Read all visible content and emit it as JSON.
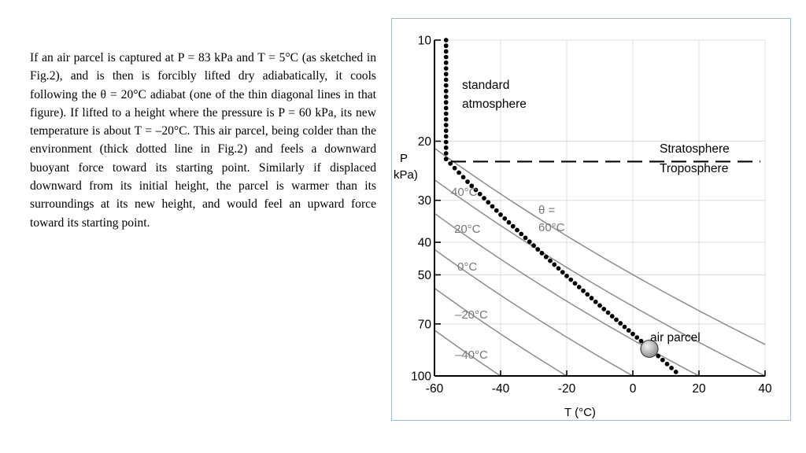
{
  "paragraph": "If an air parcel is captured at P = 83 kPa and T = 5°C (as sketched in Fig.2), and is then is forcibly lifted dry adiabatically, it cools following the θ = 20°C adiabat (one of the thin diagonal lines in that figure). If lifted to a height where the pressure is P = 60 kPa, its new temperature is about T = –20°C. This air parcel, being colder than the environment (thick dotted line in Fig.2) and feels a downward buoyant force toward its starting point. Similarly if displaced downward from its initial height, the parcel is warmer than its surroundings at its new height, and would feel an upward force toward its starting point.",
  "chart_data": {
    "type": "line",
    "xlabel": "T (°C)",
    "ylabel_line1": "P",
    "ylabel_line2": "kPa)",
    "x_ticks": [
      "-60",
      "-40",
      "-20",
      "0",
      "20",
      "40"
    ],
    "x_tick_values": [
      -60,
      -40,
      -20,
      0,
      20,
      40
    ],
    "y_ticks": [
      "10",
      "20",
      "30",
      "40",
      "50",
      "70",
      "100"
    ],
    "y_tick_values": [
      10,
      20,
      30,
      40,
      50,
      70,
      100
    ],
    "xlim": [
      -60,
      40
    ],
    "ylim": [
      10,
      100
    ],
    "y_scale": "log (reversed, pressure decreasing upward)",
    "grid": true,
    "standard_atmosphere": {
      "label_line1": "standard",
      "label_line2": "atmosphere",
      "style": "thick dotted",
      "points": [
        [
          -56.5,
          10
        ],
        [
          -56.5,
          22.6
        ],
        [
          -50,
          26.4
        ],
        [
          -40,
          33.1
        ],
        [
          -30,
          40.9
        ],
        [
          -20,
          50.4
        ],
        [
          -10,
          61.7
        ],
        [
          0,
          75.0
        ],
        [
          5,
          82.6
        ],
        [
          15,
          101.3
        ]
      ]
    },
    "tropopause": {
      "pressure": 23,
      "label_above": "Stratosphere",
      "label_below": "Troposphere",
      "style": "dashed"
    },
    "dry_adiabats": [
      {
        "theta": 60,
        "label": "60°C",
        "label_prefix": "θ ="
      },
      {
        "theta": 40,
        "label": "40°C"
      },
      {
        "theta": 20,
        "label": "20°C"
      },
      {
        "theta": 0,
        "label": "0°C"
      },
      {
        "theta": -20,
        "label": "–20°C"
      },
      {
        "theta": -40,
        "label": "–40°C"
      },
      {
        "theta": -60,
        "label": ""
      }
    ],
    "air_parcel": {
      "label": "air parcel",
      "T": 5,
      "P": 83
    }
  }
}
